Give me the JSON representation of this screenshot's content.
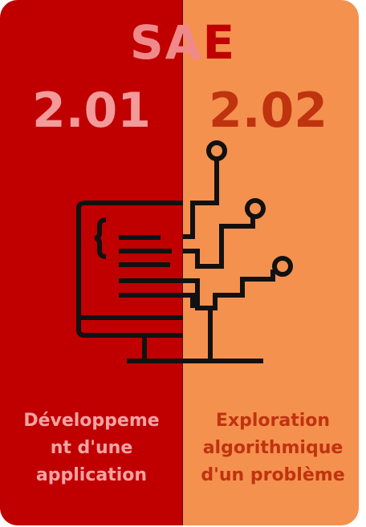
{
  "title": {
    "part_left": "SA",
    "part_right": "E"
  },
  "left": {
    "code": "2.01",
    "description_line1": "Développeme",
    "description_line2": "nt d'une",
    "description_line3": "application",
    "background": "#c00000"
  },
  "right": {
    "code": "2.02",
    "description_line1": "Exploration",
    "description_line2": "algorithmique",
    "description_line3": "d'un problème",
    "background": "#f4914e"
  },
  "illustration": {
    "icon": "computer-circuit-icon"
  }
}
